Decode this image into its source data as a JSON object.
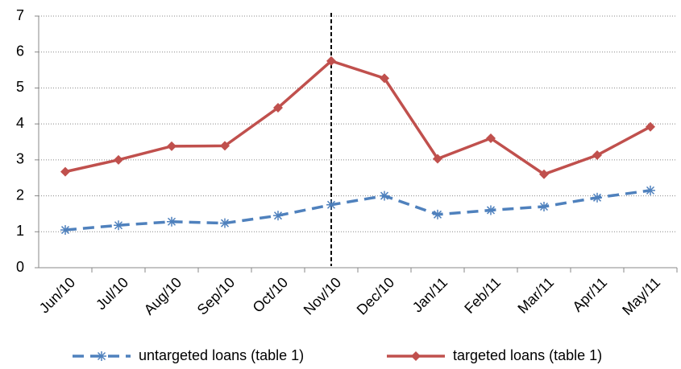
{
  "chart_data": {
    "type": "line",
    "categories": [
      "Jun/10",
      "Jul/10",
      "Aug/10",
      "Sep/10",
      "Oct/10",
      "Nov/10",
      "Dec/10",
      "Jan/11",
      "Feb/11",
      "Mar/11",
      "Apr/11",
      "May/11"
    ],
    "series": [
      {
        "name": "untargeted loans (table 1)",
        "color": "#4f81bd",
        "values": [
          1.05,
          1.18,
          1.28,
          1.24,
          1.45,
          1.75,
          2.0,
          1.48,
          1.6,
          1.7,
          1.95,
          2.15
        ]
      },
      {
        "name": "targeted loans (table 1)",
        "color": "#c0504d",
        "values": [
          2.67,
          3.0,
          3.38,
          3.39,
          4.45,
          5.75,
          5.27,
          3.03,
          3.6,
          2.6,
          3.13,
          3.92
        ]
      }
    ],
    "ylim": [
      0,
      7
    ],
    "yticks": [
      0,
      1,
      2,
      3,
      4,
      5,
      6,
      7
    ],
    "grid": true,
    "legend": "bottom"
  }
}
